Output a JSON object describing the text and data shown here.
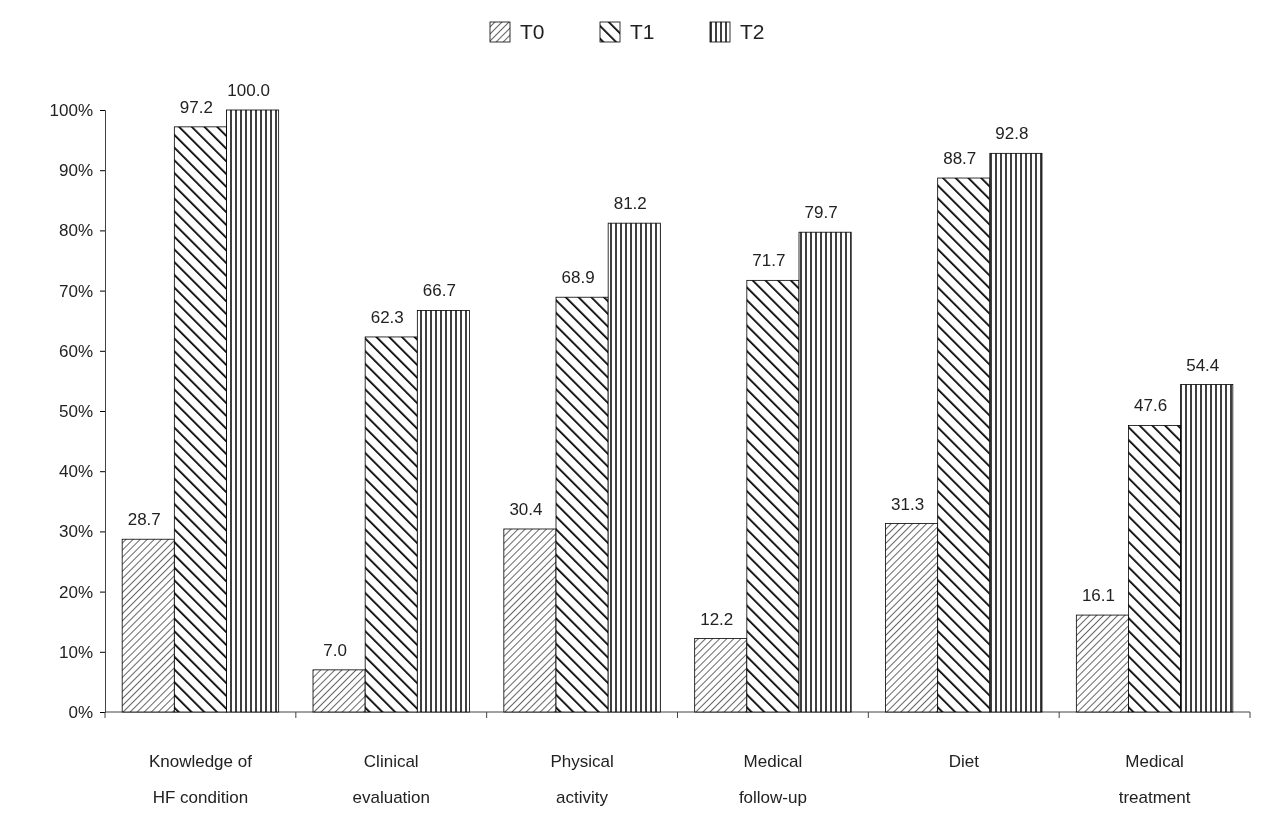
{
  "chart_data": {
    "type": "bar",
    "categories": [
      "Knowledge of HF condition",
      "Clinical evaluation",
      "Physical activity",
      "Medical follow-up",
      "Diet",
      "Medical treatment"
    ],
    "series": [
      {
        "name": "T0",
        "color": "#000000",
        "values": [
          28.7,
          7.0,
          30.4,
          12.2,
          31.3,
          16.1
        ],
        "value_labels": [
          "28.7",
          "7.0",
          "30.4",
          "12.2",
          "31.3",
          "16.1"
        ]
      },
      {
        "name": "T1",
        "color": "#000000",
        "values": [
          97.2,
          62.3,
          68.9,
          71.7,
          88.7,
          47.6
        ],
        "value_labels": [
          "97.2",
          "62.3",
          "68.9",
          "71.7",
          "88.7",
          "47.6"
        ]
      },
      {
        "name": "T2",
        "color": "#000000",
        "values": [
          100.0,
          66.7,
          81.2,
          79.7,
          92.8,
          54.4
        ],
        "value_labels": [
          "100.0",
          "66.7",
          "81.2",
          "79.7",
          "92.8",
          "54.4"
        ]
      }
    ],
    "ylim": [
      0,
      100
    ],
    "yticks": [
      {
        "value": 0,
        "label": "0%"
      },
      {
        "value": 10,
        "label": "10%"
      },
      {
        "value": 20,
        "label": "20%"
      },
      {
        "value": 30,
        "label": "30%"
      },
      {
        "value": 40,
        "label": "40%"
      },
      {
        "value": 50,
        "label": "50%"
      },
      {
        "value": 60,
        "label": "60%"
      },
      {
        "value": 70,
        "label": "70%"
      },
      {
        "value": 80,
        "label": "80%"
      },
      {
        "value": 90,
        "label": "90%"
      },
      {
        "value": 100,
        "label": "100%"
      }
    ],
    "grid": false,
    "legend": "top"
  }
}
